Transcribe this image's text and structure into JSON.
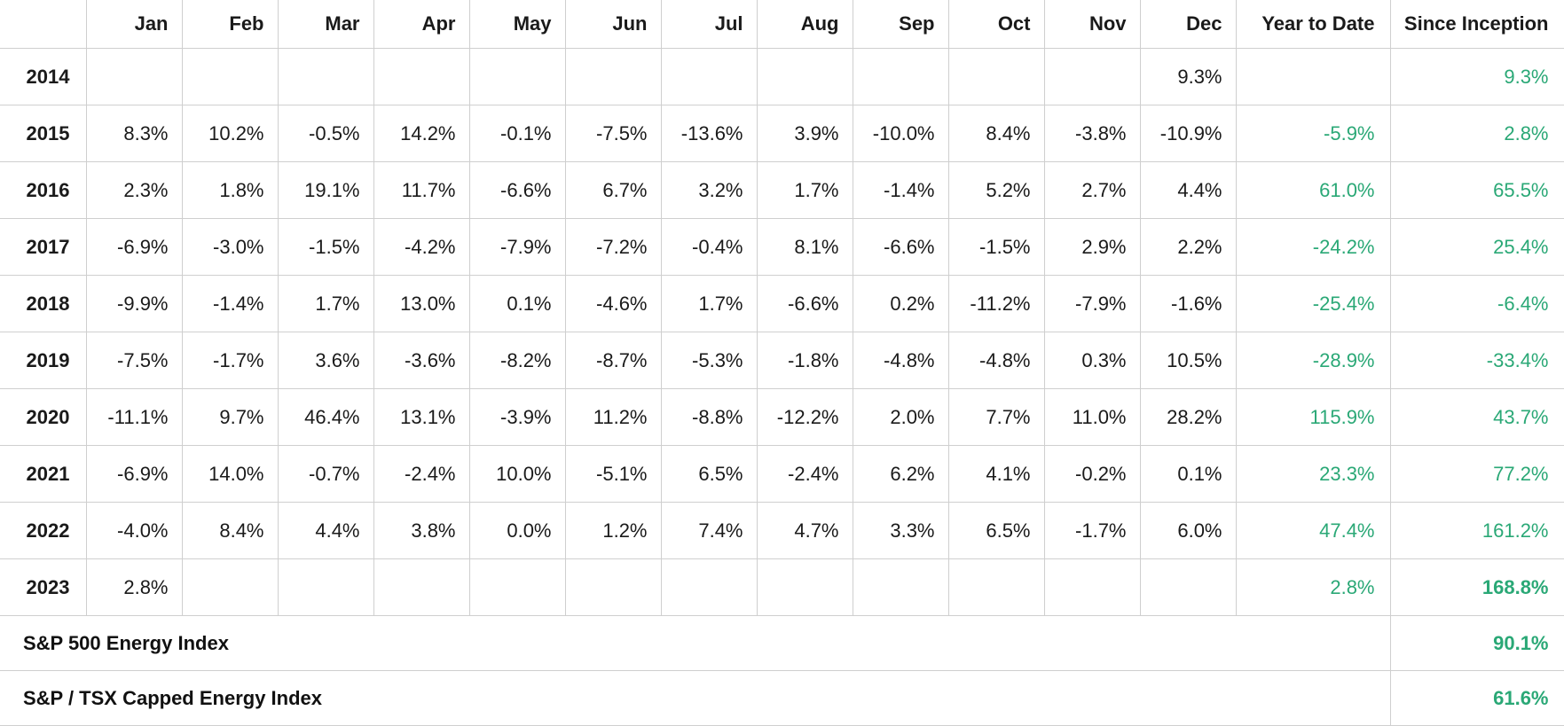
{
  "colors": {
    "accent": "#2aa876",
    "text": "#1a1a1a",
    "grid": "#cfcfcf"
  },
  "table": {
    "headers": [
      "",
      "Jan",
      "Feb",
      "Mar",
      "Apr",
      "May",
      "Jun",
      "Jul",
      "Aug",
      "Sep",
      "Oct",
      "Nov",
      "Dec",
      "Year to Date",
      "Since Inception"
    ],
    "rows": [
      {
        "year": "2014",
        "months": [
          "",
          "",
          "",
          "",
          "",
          "",
          "",
          "",
          "",
          "",
          "",
          "9.3%"
        ],
        "ytd": "",
        "since_inception": "9.3%"
      },
      {
        "year": "2015",
        "months": [
          "8.3%",
          "10.2%",
          "-0.5%",
          "14.2%",
          "-0.1%",
          "-7.5%",
          "-13.6%",
          "3.9%",
          "-10.0%",
          "8.4%",
          "-3.8%",
          "-10.9%"
        ],
        "ytd": "-5.9%",
        "since_inception": "2.8%"
      },
      {
        "year": "2016",
        "months": [
          "2.3%",
          "1.8%",
          "19.1%",
          "11.7%",
          "-6.6%",
          "6.7%",
          "3.2%",
          "1.7%",
          "-1.4%",
          "5.2%",
          "2.7%",
          "4.4%"
        ],
        "ytd": "61.0%",
        "since_inception": "65.5%"
      },
      {
        "year": "2017",
        "months": [
          "-6.9%",
          "-3.0%",
          "-1.5%",
          "-4.2%",
          "-7.9%",
          "-7.2%",
          "-0.4%",
          "8.1%",
          "-6.6%",
          "-1.5%",
          "2.9%",
          "2.2%"
        ],
        "ytd": "-24.2%",
        "since_inception": "25.4%"
      },
      {
        "year": "2018",
        "months": [
          "-9.9%",
          "-1.4%",
          "1.7%",
          "13.0%",
          "0.1%",
          "-4.6%",
          "1.7%",
          "-6.6%",
          "0.2%",
          "-11.2%",
          "-7.9%",
          "-1.6%"
        ],
        "ytd": "-25.4%",
        "since_inception": "-6.4%"
      },
      {
        "year": "2019",
        "months": [
          "-7.5%",
          "-1.7%",
          "3.6%",
          "-3.6%",
          "-8.2%",
          "-8.7%",
          "-5.3%",
          "-1.8%",
          "-4.8%",
          "-4.8%",
          "0.3%",
          "10.5%"
        ],
        "ytd": "-28.9%",
        "since_inception": "-33.4%"
      },
      {
        "year": "2020",
        "months": [
          "-11.1%",
          "9.7%",
          "46.4%",
          "13.1%",
          "-3.9%",
          "11.2%",
          "-8.8%",
          "-12.2%",
          "2.0%",
          "7.7%",
          "11.0%",
          "28.2%"
        ],
        "ytd": "115.9%",
        "since_inception": "43.7%"
      },
      {
        "year": "2021",
        "months": [
          "-6.9%",
          "14.0%",
          "-0.7%",
          "-2.4%",
          "10.0%",
          "-5.1%",
          "6.5%",
          "-2.4%",
          "6.2%",
          "4.1%",
          "-0.2%",
          "0.1%"
        ],
        "ytd": "23.3%",
        "since_inception": "77.2%"
      },
      {
        "year": "2022",
        "months": [
          "-4.0%",
          "8.4%",
          "4.4%",
          "3.8%",
          "0.0%",
          "1.2%",
          "7.4%",
          "4.7%",
          "3.3%",
          "6.5%",
          "-1.7%",
          "6.0%"
        ],
        "ytd": "47.4%",
        "since_inception": "161.2%"
      },
      {
        "year": "2023",
        "months": [
          "2.8%",
          "",
          "",
          "",
          "",
          "",
          "",
          "",
          "",
          "",
          "",
          ""
        ],
        "ytd": "2.8%",
        "since_inception": "168.8%"
      }
    ],
    "indices": [
      {
        "name": "S&P 500 Energy Index",
        "value": "90.1%"
      },
      {
        "name": "S&P / TSX Capped Energy Index",
        "value": "61.6%"
      }
    ]
  }
}
